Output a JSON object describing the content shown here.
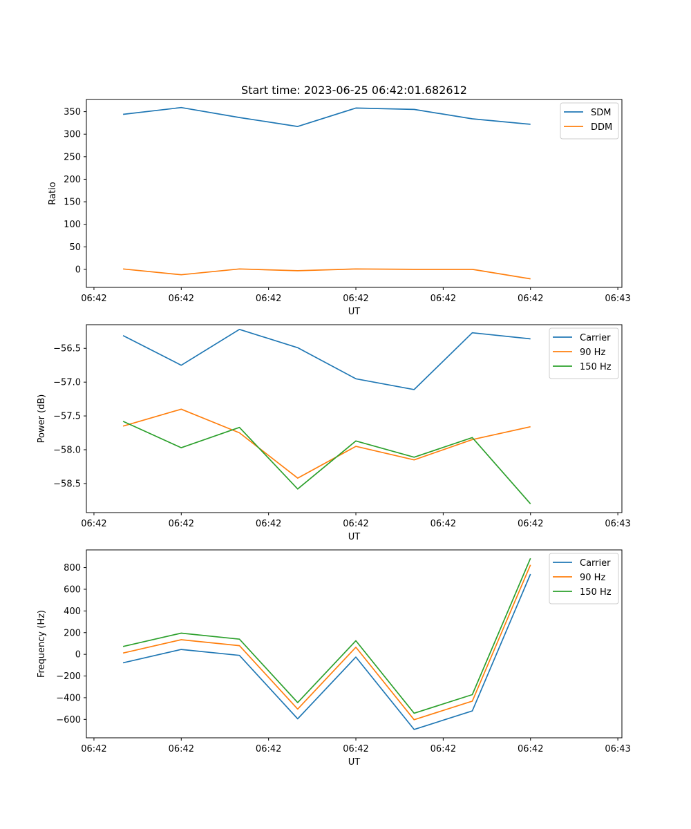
{
  "chart_data": [
    {
      "type": "line",
      "title": "Start time: 2023-06-25 06:42:01.682612",
      "xlabel": "UT",
      "ylabel": "Ratio",
      "x": [
        0.5,
        1.5,
        2.5,
        3.5,
        4.5,
        5.5,
        6.5,
        7.5
      ],
      "xlim": [
        -0.13,
        9.07
      ],
      "xticks": [
        0,
        1.5,
        3,
        4.5,
        6,
        7.5,
        9
      ],
      "xticklabels": [
        "06:42",
        "06:42",
        "06:42",
        "06:42",
        "06:42",
        "06:42",
        "06:43"
      ],
      "ylim": [
        -40,
        377
      ],
      "yticks": [
        0,
        50,
        100,
        150,
        200,
        250,
        300,
        350
      ],
      "yticklabels": [
        "0",
        "50",
        "100",
        "150",
        "200",
        "250",
        "300",
        "350"
      ],
      "legend_position": "top-right",
      "series": [
        {
          "name": "SDM",
          "color": "#1f77b4",
          "values": [
            344,
            359,
            337,
            317,
            358,
            355,
            334,
            322
          ]
        },
        {
          "name": "DDM",
          "color": "#ff7f0e",
          "values": [
            1,
            -12,
            1,
            -3,
            1,
            0,
            0,
            -21
          ]
        }
      ]
    },
    {
      "type": "line",
      "title": "",
      "xlabel": "UT",
      "ylabel": "Power (dB)",
      "x": [
        0.5,
        1.5,
        2.5,
        3.5,
        4.5,
        5.5,
        6.5,
        7.5
      ],
      "xlim": [
        -0.13,
        9.07
      ],
      "xticks": [
        0,
        1.5,
        3,
        4.5,
        6,
        7.5,
        9
      ],
      "xticklabels": [
        "06:42",
        "06:42",
        "06:42",
        "06:42",
        "06:42",
        "06:42",
        "06:43"
      ],
      "ylim": [
        -58.93,
        -56.15
      ],
      "yticks": [
        -58.5,
        -58.0,
        -57.5,
        -57.0,
        -56.5
      ],
      "yticklabels": [
        "−58.5",
        "−58.0",
        "−57.5",
        "−57.0",
        "−56.5"
      ],
      "legend_position": "top-right",
      "series": [
        {
          "name": "Carrier",
          "color": "#1f77b4",
          "values": [
            -56.31,
            -56.75,
            -56.22,
            -56.49,
            -56.95,
            -57.11,
            -56.27,
            -56.36
          ]
        },
        {
          "name": "90 Hz",
          "color": "#ff7f0e",
          "values": [
            -57.65,
            -57.4,
            -57.75,
            -58.42,
            -57.95,
            -58.15,
            -57.85,
            -57.66
          ]
        },
        {
          "name": "150 Hz",
          "color": "#2ca02c",
          "values": [
            -57.58,
            -57.97,
            -57.67,
            -58.58,
            -57.87,
            -58.11,
            -57.82,
            -58.8
          ]
        }
      ]
    },
    {
      "type": "line",
      "title": "",
      "xlabel": "UT",
      "ylabel": "Frequency (Hz)",
      "x": [
        0.5,
        1.5,
        2.5,
        3.5,
        4.5,
        5.5,
        6.5,
        7.5
      ],
      "xlim": [
        -0.13,
        9.07
      ],
      "xticks": [
        0,
        1.5,
        3,
        4.5,
        6,
        7.5,
        9
      ],
      "xticklabels": [
        "06:42",
        "06:42",
        "06:42",
        "06:42",
        "06:42",
        "06:42",
        "06:43"
      ],
      "ylim": [
        -770,
        963
      ],
      "yticks": [
        -600,
        -400,
        -200,
        0,
        200,
        400,
        600,
        800
      ],
      "yticklabels": [
        "−600",
        "−400",
        "−200",
        "0",
        "200",
        "400",
        "600",
        "800"
      ],
      "legend_position": "top-right",
      "series": [
        {
          "name": "Carrier",
          "color": "#1f77b4",
          "values": [
            -78,
            45,
            -10,
            -595,
            -25,
            -693,
            -522,
            740
          ]
        },
        {
          "name": "90 Hz",
          "color": "#ff7f0e",
          "values": [
            12,
            135,
            80,
            -505,
            65,
            -603,
            -432,
            825
          ]
        },
        {
          "name": "150 Hz",
          "color": "#2ca02c",
          "values": [
            72,
            195,
            140,
            -445,
            125,
            -543,
            -372,
            885
          ]
        }
      ]
    }
  ]
}
